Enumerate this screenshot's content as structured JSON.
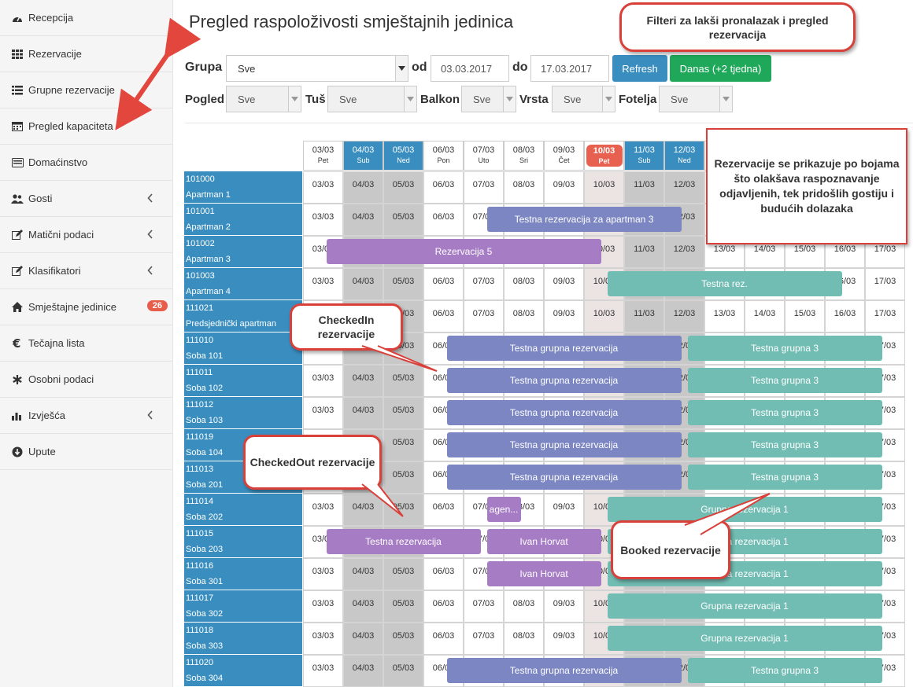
{
  "sidebar": {
    "items": [
      {
        "label": "Recepcija",
        "icon": "dashboard-icon"
      },
      {
        "label": "Rezervacije",
        "icon": "grid-icon"
      },
      {
        "label": "Grupne rezervacije",
        "icon": "list-icon"
      },
      {
        "label": "Pregled kapaciteta",
        "icon": "calendar-icon"
      },
      {
        "label": "Domaćinstvo",
        "icon": "card-icon"
      },
      {
        "label": "Gosti",
        "icon": "users-icon",
        "chevron": true
      },
      {
        "label": "Matični podaci",
        "icon": "edit-icon",
        "chevron": true
      },
      {
        "label": "Klasifikatori",
        "icon": "edit-icon",
        "chevron": true
      },
      {
        "label": "Smještajne jedinice",
        "icon": "home-icon",
        "badge": "26"
      },
      {
        "label": "Tečajna lista",
        "icon": "euro-icon"
      },
      {
        "label": "Osobni podaci",
        "icon": "asterisk-icon"
      },
      {
        "label": "Izvješća",
        "icon": "bar-chart-icon",
        "chevron": true
      },
      {
        "label": "Upute",
        "icon": "download-icon"
      }
    ]
  },
  "page": {
    "title": "Pregled raspoloživosti smještajnih jedinica"
  },
  "filters": {
    "grupa_label": "Grupa",
    "grupa_value": "Sve",
    "od_label": "od",
    "od_value": "03.03.2017",
    "do_label": "do",
    "do_value": "17.03.2017",
    "refresh_label": "Refresh",
    "danas_label": "Danas (+2 tjedna)",
    "pogled_label": "Pogled",
    "pogled_value": "Sve",
    "tus_label": "Tuš",
    "tus_value": "Sve",
    "balkon_label": "Balkon",
    "balkon_value": "Sve",
    "vrsta_label": "Vrsta",
    "vrsta_value": "Sve",
    "fotelja_label": "Fotelja",
    "fotelja_value": "Sve"
  },
  "colors": {
    "checked_in": "#7b86c2",
    "checked_out": "#a67cc5",
    "booked": "#72bdb3",
    "unit_label": "#3a8ebf",
    "weekend": "#c8c8c8",
    "today": "#ece3e3",
    "today_badge": "#e8604f",
    "header_weekend": "#3a8ebf",
    "refresh": "#3a8ebf",
    "danas": "#1fa85a"
  },
  "calendar": {
    "days": [
      {
        "date": "03/03",
        "wd": "Pet",
        "type": "normal"
      },
      {
        "date": "04/03",
        "wd": "Sub",
        "type": "weekend"
      },
      {
        "date": "05/03",
        "wd": "Ned",
        "type": "weekend"
      },
      {
        "date": "06/03",
        "wd": "Pon",
        "type": "normal"
      },
      {
        "date": "07/03",
        "wd": "Uto",
        "type": "normal"
      },
      {
        "date": "08/03",
        "wd": "Sri",
        "type": "normal"
      },
      {
        "date": "09/03",
        "wd": "Čet",
        "type": "normal"
      },
      {
        "date": "10/03",
        "wd": "Pet",
        "type": "today"
      },
      {
        "date": "11/03",
        "wd": "Sub",
        "type": "weekend"
      },
      {
        "date": "12/03",
        "wd": "Ned",
        "type": "weekend"
      },
      {
        "date": "13/03",
        "wd": "",
        "type": "normal"
      },
      {
        "date": "14/03",
        "wd": "",
        "type": "normal"
      },
      {
        "date": "15/03",
        "wd": "",
        "type": "normal"
      },
      {
        "date": "16/03",
        "wd": "",
        "type": "normal"
      },
      {
        "date": "17/03",
        "wd": "",
        "type": "normal"
      }
    ],
    "units": [
      {
        "code": "101000",
        "name": "Apartman 1"
      },
      {
        "code": "101001",
        "name": "Apartman 2"
      },
      {
        "code": "101002",
        "name": "Apartman 3"
      },
      {
        "code": "101003",
        "name": "Apartman 4"
      },
      {
        "code": "111021",
        "name": "Predsjednički apartman"
      },
      {
        "code": "111010",
        "name": "Soba 101"
      },
      {
        "code": "111011",
        "name": "Soba 102"
      },
      {
        "code": "111012",
        "name": "Soba 103"
      },
      {
        "code": "111019",
        "name": "Soba 104"
      },
      {
        "code": "111013",
        "name": "Soba 201"
      },
      {
        "code": "111014",
        "name": "Soba 202"
      },
      {
        "code": "111015",
        "name": "Soba 203"
      },
      {
        "code": "111016",
        "name": "Soba 301"
      },
      {
        "code": "111017",
        "name": "Soba 302"
      },
      {
        "code": "111018",
        "name": "Soba 303"
      },
      {
        "code": "111020",
        "name": "Soba 304"
      }
    ],
    "reservations": [
      {
        "row": 1,
        "start": 4.5,
        "end": 9.5,
        "label": "Testna rezervacija za apartman 3",
        "status": "checked_in"
      },
      {
        "row": 2,
        "start": 0.5,
        "end": 7.5,
        "label": "Rezervacija 5",
        "status": "checked_out"
      },
      {
        "row": 3,
        "start": 7.5,
        "end": 13.5,
        "label": "Testna rez.",
        "status": "booked"
      },
      {
        "row": 5,
        "start": 3.5,
        "end": 9.5,
        "label": "Testna grupna rezervacija",
        "status": "checked_in"
      },
      {
        "row": 5,
        "start": 9.5,
        "end": 14.5,
        "label": "Testna grupna 3",
        "status": "booked"
      },
      {
        "row": 6,
        "start": 3.5,
        "end": 9.5,
        "label": "Testna grupna rezervacija",
        "status": "checked_in"
      },
      {
        "row": 6,
        "start": 9.5,
        "end": 14.5,
        "label": "Testna grupna 3",
        "status": "booked"
      },
      {
        "row": 7,
        "start": 3.5,
        "end": 9.5,
        "label": "Testna grupna rezervacija",
        "status": "checked_in"
      },
      {
        "row": 7,
        "start": 9.5,
        "end": 14.5,
        "label": "Testna grupna 3",
        "status": "booked"
      },
      {
        "row": 8,
        "start": 3.5,
        "end": 9.5,
        "label": "Testna grupna rezervacija",
        "status": "checked_in"
      },
      {
        "row": 8,
        "start": 9.5,
        "end": 14.5,
        "label": "Testna grupna 3",
        "status": "booked"
      },
      {
        "row": 9,
        "start": 3.5,
        "end": 9.5,
        "label": "Testna grupna rezervacija",
        "status": "checked_in"
      },
      {
        "row": 9,
        "start": 9.5,
        "end": 14.5,
        "label": "Testna grupna 3",
        "status": "booked"
      },
      {
        "row": 10,
        "start": 4.5,
        "end": 5.5,
        "label": "agen...",
        "status": "checked_out"
      },
      {
        "row": 10,
        "start": 7.5,
        "end": 14.5,
        "label": "Grupna rezervacija 1",
        "status": "booked"
      },
      {
        "row": 11,
        "start": 0.5,
        "end": 4.5,
        "label": "Testna rezervacija",
        "status": "checked_out"
      },
      {
        "row": 11,
        "start": 4.5,
        "end": 7.5,
        "label": "Ivan Horvat",
        "status": "checked_out"
      },
      {
        "row": 11,
        "start": 7.5,
        "end": 14.5,
        "label": "Grupna rezervacija 1",
        "status": "booked"
      },
      {
        "row": 12,
        "start": 4.5,
        "end": 7.5,
        "label": "Ivan Horvat",
        "status": "checked_out"
      },
      {
        "row": 12,
        "start": 7.5,
        "end": 14.5,
        "label": "Grupna rezervacija 1",
        "status": "booked"
      },
      {
        "row": 13,
        "start": 7.5,
        "end": 14.5,
        "label": "Grupna rezervacija 1",
        "status": "booked"
      },
      {
        "row": 14,
        "start": 7.5,
        "end": 14.5,
        "label": "Grupna rezervacija 1",
        "status": "booked"
      },
      {
        "row": 15,
        "start": 3.5,
        "end": 9.5,
        "label": "Testna grupna rezervacija",
        "status": "checked_in"
      },
      {
        "row": 15,
        "start": 9.5,
        "end": 14.5,
        "label": "Testna grupna 3",
        "status": "booked"
      }
    ]
  },
  "annotations": {
    "filters": "Filteri za lakši pronalazak i pregled rezervacija",
    "colors_note": "Rezervacije se prikazuje po bojama što olakšava raspoznavanje odjavljenih, tek pridošlih gostiju i budućih dolazaka",
    "checked_in": "CheckedIn rezervacije",
    "checked_out": "CheckedOut rezervacije",
    "booked": "Booked rezervacije"
  }
}
